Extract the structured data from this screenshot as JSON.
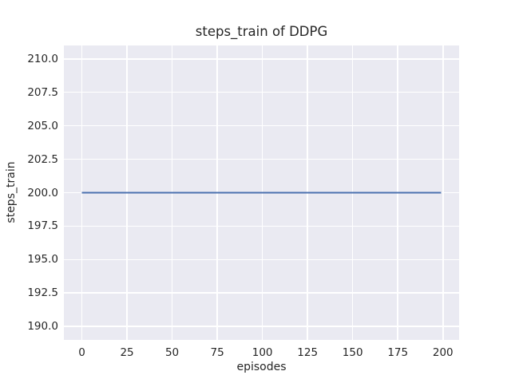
{
  "chart_data": {
    "type": "line",
    "title": "steps_train of DDPG",
    "xlabel": "episodes",
    "ylabel": "steps_train",
    "xlim": [
      -9.95,
      208.95
    ],
    "ylim": [
      189.0,
      211.0
    ],
    "x_tick_values": [
      0,
      25,
      50,
      75,
      100,
      125,
      150,
      175,
      200
    ],
    "x_tick_labels": [
      "0",
      "25",
      "50",
      "75",
      "100",
      "125",
      "150",
      "175",
      "200"
    ],
    "y_tick_values": [
      190.0,
      192.5,
      195.0,
      197.5,
      200.0,
      202.5,
      205.0,
      207.5,
      210.0
    ],
    "y_tick_labels": [
      "190.0",
      "192.5",
      "195.0",
      "197.5",
      "200.0",
      "202.5",
      "205.0",
      "207.5",
      "210.0"
    ],
    "grid": true,
    "legend": "none",
    "colors": {
      "line": "#4c72b0",
      "plot_background": "#eaeaf2",
      "grid": "#ffffff",
      "text": "#262626",
      "figure_background": "#ffffff"
    },
    "series": [
      {
        "name": "steps_train",
        "x": [
          0,
          199
        ],
        "y": [
          200,
          200
        ]
      }
    ]
  }
}
